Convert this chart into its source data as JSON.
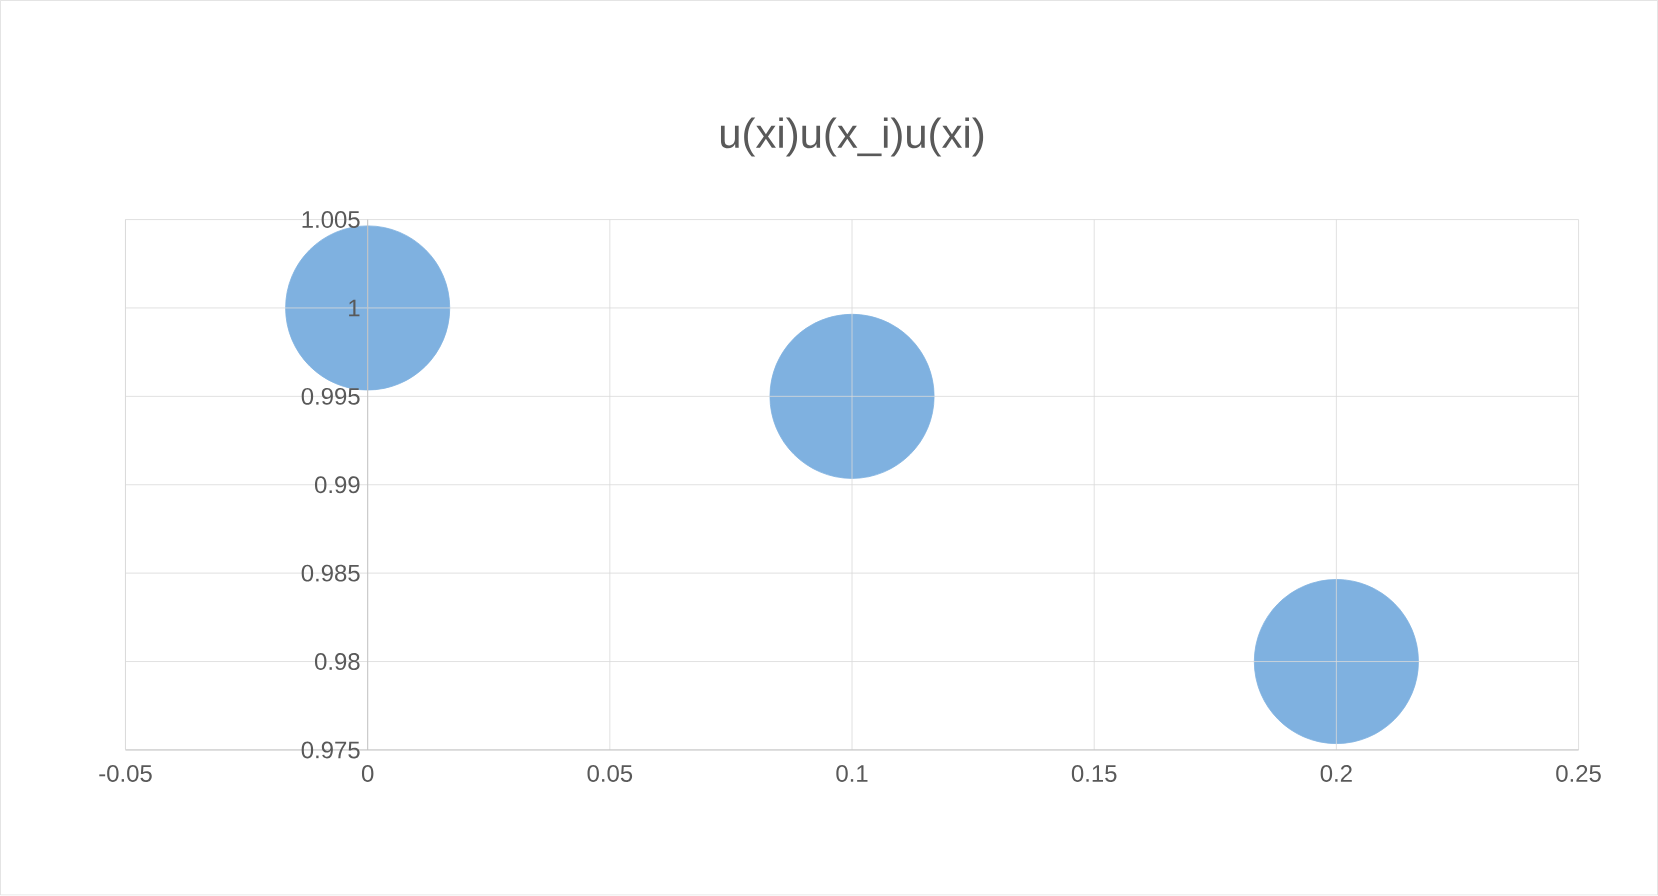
{
  "chart_data": {
    "type": "bubble",
    "title": "u(xi)u(x_i)u(xi)",
    "x": [
      0,
      0.1,
      0.2
    ],
    "values": [
      1,
      0.995,
      0.98
    ],
    "sizes": [
      1,
      1,
      1
    ],
    "color": "#7fb1e0",
    "xlim": [
      -0.05,
      0.25
    ],
    "xticks": [
      -0.05,
      0,
      0.05,
      0.1,
      0.15,
      0.2,
      0.25
    ],
    "ylim": [
      0.975,
      1.005
    ],
    "yticks": [
      0.975,
      0.98,
      0.985,
      0.99,
      0.995,
      1,
      1.005
    ],
    "grid": true
  }
}
